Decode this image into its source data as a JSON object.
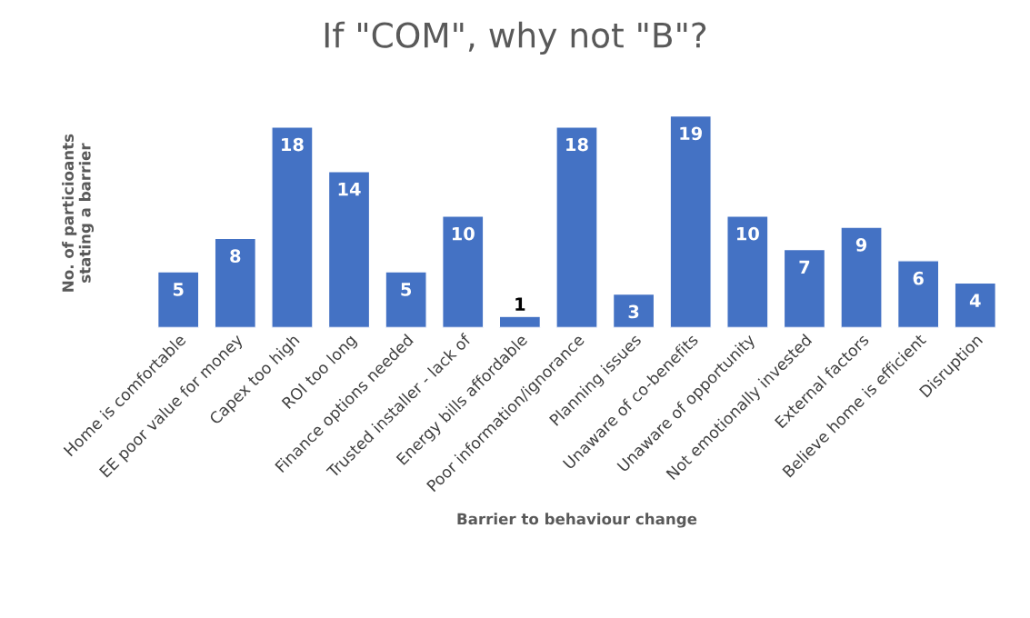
{
  "chart_data": {
    "type": "bar",
    "title": "If \"COM\", why not \"B\"?",
    "xlabel": "Barrier to behaviour change",
    "ylabel": "No. of particioants\nstating a barrier",
    "categories": [
      "Home is comfortable",
      "EE poor value for money",
      "Capex too high",
      "ROI too long",
      "Finance options needed",
      "Trusted installer - lack of",
      "Energy bills affordable",
      "Poor information/ignorance",
      "Planning issues",
      "Unaware of co-benefits",
      "Unaware of opportunity",
      "Not emotionally invested",
      "External factors",
      "Believe home is efficient",
      "Disruption"
    ],
    "values": [
      5,
      8,
      18,
      14,
      5,
      10,
      1,
      18,
      3,
      19,
      10,
      7,
      9,
      6,
      4
    ],
    "color": "#4472c4",
    "data_labels": true,
    "grid": false,
    "legend": false,
    "tick_labels": "x"
  }
}
